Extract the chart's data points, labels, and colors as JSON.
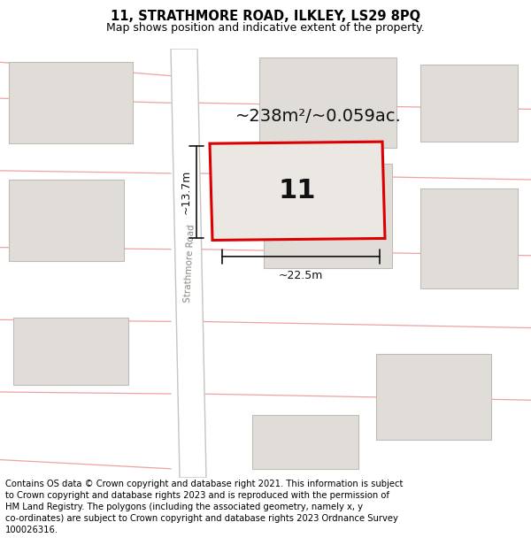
{
  "title_line1": "11, STRATHMORE ROAD, ILKLEY, LS29 8PQ",
  "title_line2": "Map shows position and indicative extent of the property.",
  "footer_text": "Contains OS data © Crown copyright and database right 2021. This information is subject to Crown copyright and database rights 2023 and is reproduced with the permission of HM Land Registry. The polygons (including the associated geometry, namely x, y co-ordinates) are subject to Crown copyright and database rights 2023 Ordnance Survey 100026316.",
  "map_bg": "#f7f5f3",
  "road_color": "#ffffff",
  "road_border": "#c8c4c0",
  "building_fill": "#e0dcd8",
  "building_border": "#c0bbb6",
  "plot_fill": "#ebe8e4",
  "plot_border": "#dd0000",
  "grid_line_color": "#f0a0a0",
  "dim_color": "#111111",
  "area_text": "~238m²/~0.059ac.",
  "number_text": "11",
  "dim_width": "~22.5m",
  "dim_height": "~13.7m",
  "road_label": "Strathmore Road",
  "title_fontsize": 10.5,
  "subtitle_fontsize": 9,
  "footer_fontsize": 7.2,
  "area_fontsize": 14,
  "number_fontsize": 22
}
